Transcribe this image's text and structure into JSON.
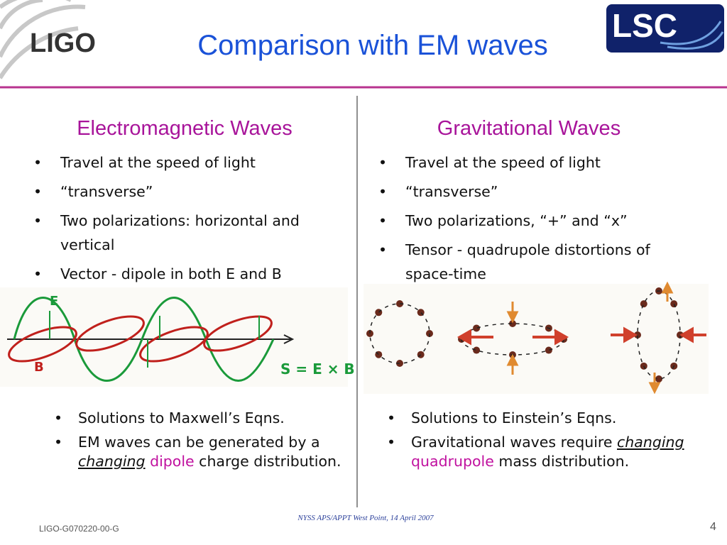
{
  "header": {
    "logo_left": "LIGO",
    "title": "Comparison with EM waves",
    "logo_right": "LSC"
  },
  "left": {
    "heading": "Electromagnetic Waves",
    "bullets": [
      "Travel at the speed of light",
      " “transverse”",
      "Two polarizations: horizontal and vertical",
      "Vector - dipole in both E and B"
    ],
    "figure": {
      "labels": [
        "E",
        "B",
        "S = E × B"
      ]
    },
    "notes": [
      {
        "runs": [
          "Solutions to Maxwell’s Eqns."
        ]
      },
      {
        "runs": [
          "EM waves can be generated by a ",
          "changing",
          " ",
          "dipole",
          " charge distribution."
        ]
      }
    ]
  },
  "right": {
    "heading": "Gravitational Waves",
    "bullets": [
      "Travel at the speed of light",
      "“transverse”",
      "Two polarizations, “+” and “x”",
      "Tensor - quadrupole distortions of space-time"
    ],
    "notes": [
      {
        "runs": [
          "Solutions to Einstein’s Eqns."
        ]
      },
      {
        "runs": [
          "Gravitational waves require ",
          "changing",
          " ",
          "quadrupole",
          " mass distribution."
        ]
      }
    ]
  },
  "footer": {
    "doc_id": "LIGO-G070220-00-G",
    "event": "NYSS APS/APPT West Point, 14 April 2007",
    "page": "4"
  }
}
